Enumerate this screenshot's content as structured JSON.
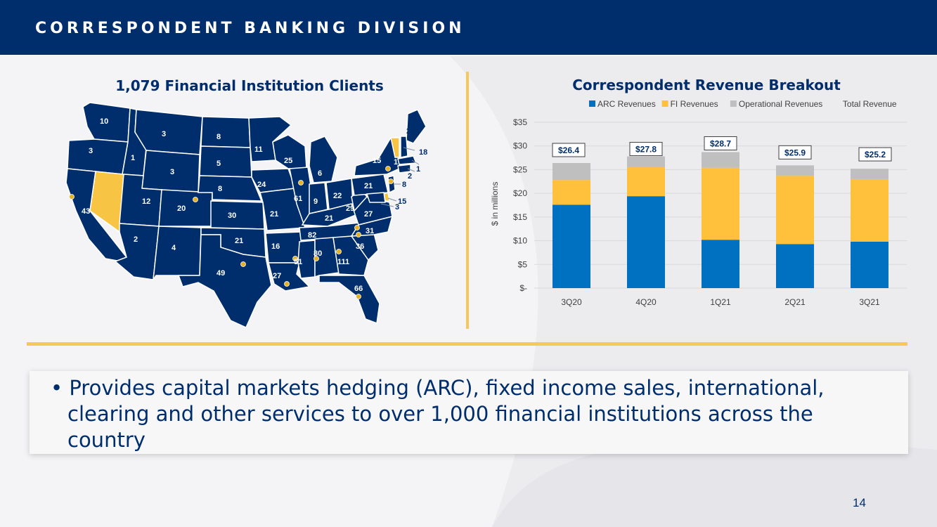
{
  "header": {
    "title": "CORRESPONDENT BANKING DIVISION"
  },
  "map": {
    "title": "1,079 Financial Institution Clients",
    "labels": {
      "wa": "10",
      "or": "3",
      "ca": "43",
      "nv": "",
      "id": "1",
      "mt": "3",
      "wy": "3",
      "ut": "12",
      "az": "2",
      "co": "20",
      "nm": "4",
      "nd": "8",
      "sd": "5",
      "ne": "8",
      "ks": "30",
      "ok": "21",
      "tx": "49",
      "mn": "11",
      "ia": "24",
      "mo": "21",
      "ar": "16",
      "la": "27",
      "wi": "25",
      "il": "61",
      "mi": "6",
      "in": "9",
      "oh": "22",
      "ky": "21",
      "tn": "82",
      "ms": "51",
      "al": "80",
      "ga": "111",
      "fl": "66",
      "sc": "36",
      "nc": "31",
      "va": "27",
      "wv": "29",
      "pa": "21",
      "ny": "15",
      "me": "2",
      "vt": "1",
      "nh": "18",
      "ma": "1",
      "ct": "2",
      "nj": "8",
      "de": "15",
      "md": "3"
    }
  },
  "chart_data": {
    "type": "bar",
    "title": "Correspondent Revenue Breakout",
    "ylabel": "$ in millions",
    "xlabel": "",
    "categories": [
      "3Q20",
      "4Q20",
      "1Q21",
      "2Q21",
      "3Q21"
    ],
    "series": [
      {
        "name": "ARC Revenues",
        "color": "#0070c0",
        "values": [
          17.6,
          19.4,
          10.2,
          9.3,
          9.8
        ]
      },
      {
        "name": "FI Revenues",
        "color": "#ffc03c",
        "values": [
          5.2,
          6.1,
          15.2,
          14.4,
          13.2
        ]
      },
      {
        "name": "Operational Revenues",
        "color": "#bfbfbf",
        "values": [
          3.6,
          2.3,
          3.3,
          2.2,
          2.2
        ]
      }
    ],
    "totals_name": "Total Revenue",
    "totals": [
      26.4,
      27.8,
      28.7,
      25.9,
      25.2
    ],
    "total_labels": [
      "$26.4",
      "$27.8",
      "$28.7",
      "$25.9",
      "$25.2"
    ],
    "yticks": [
      "$-",
      "$5",
      "$10",
      "$15",
      "$20",
      "$25",
      "$30",
      "$35"
    ],
    "ylim": [
      0,
      35
    ],
    "grid": true,
    "legend_position": "top"
  },
  "bullet": {
    "text": "• Provides capital markets hedging (ARC), fixed income sales, international, clearing and other services to over 1,000 financial institutions across the country"
  },
  "footer": {
    "page_number": "14"
  }
}
